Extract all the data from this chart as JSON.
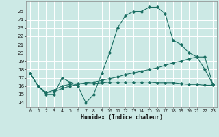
{
  "title": "",
  "xlabel": "Humidex (Indice chaleur)",
  "ylabel": "",
  "xlim": [
    -0.5,
    23.5
  ],
  "ylim": [
    13.5,
    26.2
  ],
  "yticks": [
    14,
    15,
    16,
    17,
    18,
    19,
    20,
    21,
    22,
    23,
    24,
    25
  ],
  "xticks": [
    0,
    1,
    2,
    3,
    4,
    5,
    6,
    7,
    8,
    9,
    10,
    11,
    12,
    13,
    14,
    15,
    16,
    17,
    18,
    19,
    20,
    21,
    22,
    23
  ],
  "bg_color": "#cce9e5",
  "grid_color": "#ffffff",
  "line_color": "#1a6e62",
  "lines": [
    {
      "x": [
        0,
        1,
        2,
        3,
        4,
        5,
        6,
        7,
        8,
        9,
        10,
        11,
        12,
        13,
        14,
        15,
        16,
        17,
        18,
        19,
        20,
        21,
        22,
        23
      ],
      "y": [
        17.5,
        16,
        15,
        15,
        17,
        16.5,
        16,
        14,
        15,
        17.5,
        20,
        23,
        24.5,
        25,
        25,
        25.5,
        25.5,
        24.7,
        21.5,
        21,
        20,
        19.5,
        18,
        16.2
      ]
    },
    {
      "x": [
        0,
        1,
        2,
        3,
        4,
        5,
        6,
        7,
        8,
        9,
        10,
        11,
        12,
        13,
        14,
        15,
        16,
        17,
        18,
        19,
        20,
        21,
        22,
        23
      ],
      "y": [
        17.5,
        16.0,
        15.2,
        15.3,
        15.7,
        16.0,
        16.2,
        16.4,
        16.5,
        16.7,
        16.9,
        17.1,
        17.4,
        17.6,
        17.8,
        18.0,
        18.2,
        18.5,
        18.8,
        19.0,
        19.3,
        19.5,
        19.5,
        16.2
      ]
    },
    {
      "x": [
        0,
        1,
        2,
        3,
        4,
        5,
        6,
        7,
        8,
        9,
        10,
        11,
        12,
        13,
        14,
        15,
        16,
        17,
        18,
        19,
        20,
        21,
        22,
        23
      ],
      "y": [
        17.5,
        16.0,
        15.2,
        15.5,
        16.0,
        16.2,
        16.3,
        16.3,
        16.3,
        16.4,
        16.5,
        16.5,
        16.5,
        16.5,
        16.5,
        16.5,
        16.4,
        16.4,
        16.4,
        16.3,
        16.2,
        16.2,
        16.1,
        16.1
      ]
    }
  ]
}
